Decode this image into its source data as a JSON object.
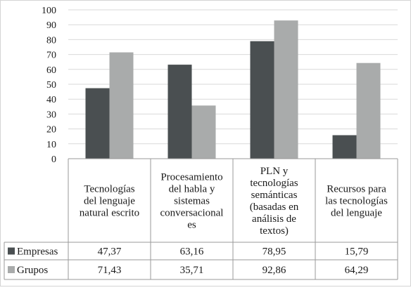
{
  "chart_data": {
    "type": "bar",
    "categories": [
      [
        "Tecnologías",
        "del lenguaje",
        "natural escrito"
      ],
      [
        "Procesamiento",
        "del habla y",
        "sistemas",
        "conversacional",
        "es"
      ],
      [
        "PLN y",
        "tecnologías",
        "semánticas",
        "(basadas en",
        "análisis de",
        "textos)"
      ],
      [
        "Recursos para",
        "las tecnologías",
        "del lenguaje"
      ]
    ],
    "series": [
      {
        "name": "Empresas",
        "values": [
          47.37,
          63.16,
          78.95,
          15.79
        ],
        "labels": [
          "47,37",
          "63,16",
          "78,95",
          "15,79"
        ],
        "color": "#4a4f51"
      },
      {
        "name": "Grupos",
        "values": [
          71.43,
          35.71,
          92.86,
          64.29
        ],
        "labels": [
          "71,43",
          "35,71",
          "92,86",
          "64,29"
        ],
        "color": "#a9abab"
      }
    ],
    "ylim": [
      0,
      100
    ],
    "yticks": [
      "0",
      "10",
      "20",
      "30",
      "40",
      "50",
      "60",
      "70",
      "80",
      "90",
      "100"
    ],
    "grid": true,
    "legend": "data-table"
  }
}
